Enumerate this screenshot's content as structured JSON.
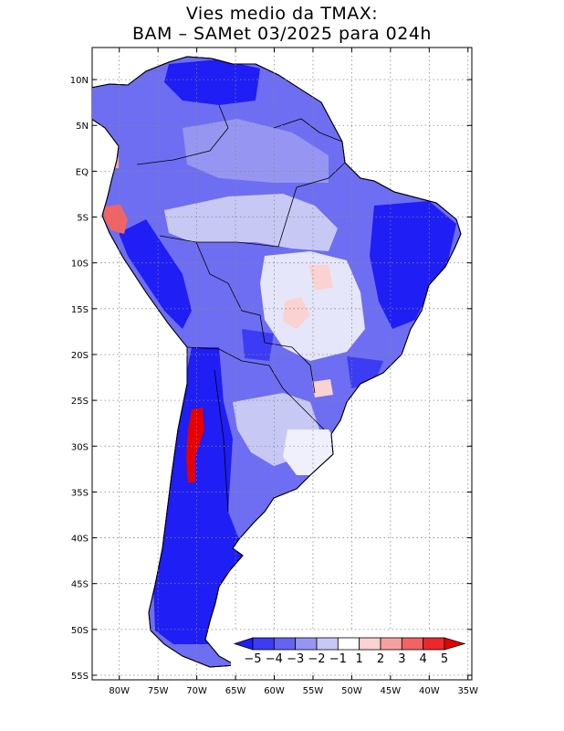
{
  "title": {
    "line1": "Vies medio da TMAX:",
    "line2": "BAM – SAMet 03/2025  para 024h"
  },
  "axes": {
    "lat_labels": [
      "10N",
      "5N",
      "EQ",
      "5S",
      "10S",
      "15S",
      "20S",
      "25S",
      "30S",
      "35S",
      "40S",
      "45S",
      "50S",
      "55S"
    ],
    "lon_labels": [
      "80W",
      "75W",
      "70W",
      "65W",
      "60W",
      "55W",
      "50W",
      "45W",
      "40W",
      "35W"
    ],
    "lat_values": [
      10,
      5,
      0,
      -5,
      -10,
      -15,
      -20,
      -25,
      -30,
      -35,
      -40,
      -45,
      -50,
      -55
    ],
    "lon_values": [
      -80,
      -75,
      -70,
      -65,
      -60,
      -55,
      -50,
      -45,
      -40,
      -35
    ],
    "lat_range": [
      -55.5,
      13.5
    ],
    "lon_range": [
      -83.5,
      -34.5
    ],
    "grid": true
  },
  "colorbar": {
    "labels": [
      "−5",
      "−4",
      "−3",
      "−2",
      "−1",
      "1",
      "2",
      "3",
      "4",
      "5"
    ],
    "colors": [
      "#1e1ef5",
      "#3c3cf5",
      "#6464f2",
      "#9696f2",
      "#c8c8f5",
      "#ffffff",
      "#fad2d2",
      "#f5a0a0",
      "#f06464",
      "#ee2828",
      "#e60000"
    ],
    "under_color": "#1e1ef5",
    "over_color": "#e60000"
  },
  "colors": {
    "grid": "#888888",
    "border": "#000000",
    "deep_blue": "#1e1ef5",
    "mid_blue": "#6464f2",
    "light_blue": "#c8c8f5",
    "red": "#e60000",
    "pink": "#fad2d2"
  }
}
